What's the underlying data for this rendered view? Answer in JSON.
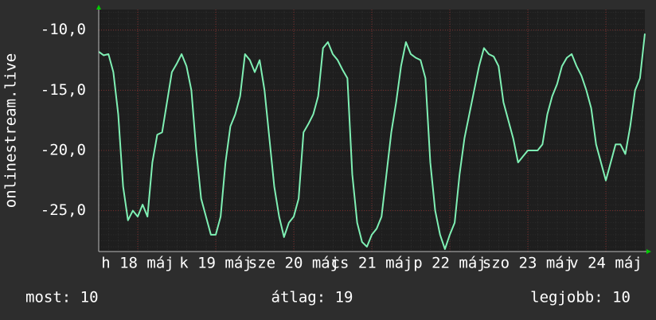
{
  "chart_data": {
    "type": "line",
    "y_label": "onlinestream.live",
    "xlim": [
      0,
      168
    ],
    "ylim": [
      -28.4,
      -8.3
    ],
    "yticks": [
      {
        "value": -10,
        "label": "-10,0"
      },
      {
        "value": -15,
        "label": "-15,0"
      },
      {
        "value": -20,
        "label": "-20,0"
      },
      {
        "value": -25,
        "label": "-25,0"
      }
    ],
    "xticks": [
      {
        "value": 12,
        "label": "h 18 máj"
      },
      {
        "value": 36,
        "label": "k 19 máj"
      },
      {
        "value": 60,
        "label": "sze 20 máj"
      },
      {
        "value": 84,
        "label": "cs 21 máj"
      },
      {
        "value": 108,
        "label": "p 22 máj"
      },
      {
        "value": 132,
        "label": "szo 23 máj"
      },
      {
        "value": 156,
        "label": "v 24 máj"
      }
    ],
    "grid": true,
    "x": [
      0,
      1.5,
      3,
      4.5,
      6,
      7.5,
      9,
      10.5,
      12,
      13.5,
      15,
      16.5,
      18,
      19.5,
      21,
      22.5,
      24,
      25.5,
      27,
      28.5,
      30,
      31.5,
      33,
      34.5,
      36,
      37.5,
      39,
      40.5,
      42,
      43.5,
      45,
      46.5,
      48,
      49.5,
      51,
      52.5,
      54,
      55.5,
      57,
      58.5,
      60,
      61.5,
      63,
      64.5,
      66,
      67.5,
      69,
      70.5,
      72,
      73.5,
      75,
      76.5,
      78,
      79.5,
      81,
      82.5,
      84,
      85.5,
      87,
      88.5,
      90,
      91.5,
      93,
      94.5,
      96,
      97.5,
      99,
      100.5,
      102,
      103.5,
      105,
      106.5,
      108,
      109.5,
      111,
      112.5,
      114,
      115.5,
      117,
      118.5,
      120,
      121.5,
      123,
      124.5,
      126,
      127.5,
      129,
      130.5,
      132,
      133.5,
      135,
      136.5,
      138,
      139.5,
      141,
      142.5,
      144,
      145.5,
      147,
      148.5,
      150,
      151.5,
      153,
      154.5,
      156,
      157.5,
      159,
      160.5,
      162,
      163.5,
      165,
      166.5,
      168
    ],
    "series": [
      {
        "color": "#7ff0b4",
        "values": [
          -11.8,
          -12.1,
          -12,
          -13.5,
          -17,
          -23,
          -25.8,
          -25,
          -25.5,
          -24.5,
          -25.5,
          -21,
          -18.7,
          -18.5,
          -16,
          -13.5,
          -12.8,
          -12,
          -13,
          -15,
          -20,
          -24,
          -25.5,
          -27,
          -27,
          -25.5,
          -21,
          -18,
          -17,
          -15.5,
          -12,
          -12.5,
          -13.5,
          -12.5,
          -15,
          -19,
          -23,
          -25.5,
          -27.2,
          -26,
          -25.5,
          -24,
          -18.5,
          -17.8,
          -17,
          -15.5,
          -11.5,
          -11,
          -12,
          -12.5,
          -13.3,
          -14,
          -22,
          -26,
          -27.6,
          -28,
          -27,
          -26.5,
          -25.5,
          -22,
          -18.5,
          -16,
          -13,
          -11,
          -12,
          -12.3,
          -12.5,
          -14,
          -21,
          -25,
          -27,
          -28.2,
          -27,
          -26,
          -22,
          -19,
          -17,
          -15,
          -13,
          -11.5,
          -12,
          -12.2,
          -13,
          -16,
          -17.5,
          -19,
          -21,
          -20.5,
          -20,
          -20,
          -20,
          -19.5,
          -17,
          -15.5,
          -14.5,
          -13,
          -12.3,
          -12,
          -13,
          -13.8,
          -15,
          -16.5,
          -19.5,
          -21,
          -22.5,
          -21,
          -19.5,
          -19.5,
          -20.3,
          -18,
          -15,
          -14,
          -10.3
        ]
      }
    ],
    "footer": [
      "most: 10",
      "átlag: 19",
      "legjobb: 10"
    ]
  }
}
